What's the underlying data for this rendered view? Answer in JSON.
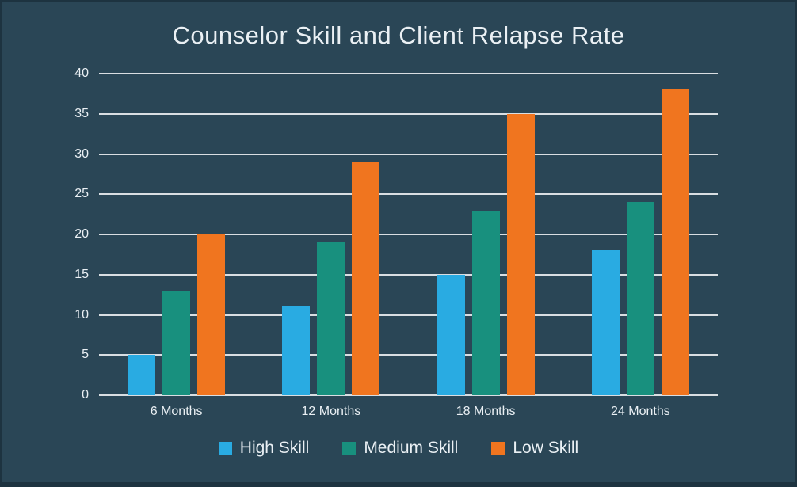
{
  "chart_data": {
    "type": "bar",
    "title": "Counselor Skill and Client Relapse Rate",
    "categories": [
      "6 Months",
      "12 Months",
      "18 Months",
      "24 Months"
    ],
    "series": [
      {
        "name": "High Skill",
        "color": "#29abe2",
        "values": [
          5,
          11,
          15,
          18
        ]
      },
      {
        "name": "Medium Skill",
        "color": "#18907e",
        "values": [
          13,
          19,
          23,
          24
        ]
      },
      {
        "name": "Low Skill",
        "color": "#f0751f",
        "values": [
          20,
          29,
          35,
          38
        ]
      }
    ],
    "xlabel": "",
    "ylabel": "",
    "ylim": [
      0,
      40
    ],
    "ytick_step": 5,
    "grid": true,
    "legend_position": "bottom",
    "colors": {
      "background": "#2a4656",
      "border": "#1d3340",
      "gridline": "#e8ebee",
      "text": "#eaf0f4"
    }
  }
}
